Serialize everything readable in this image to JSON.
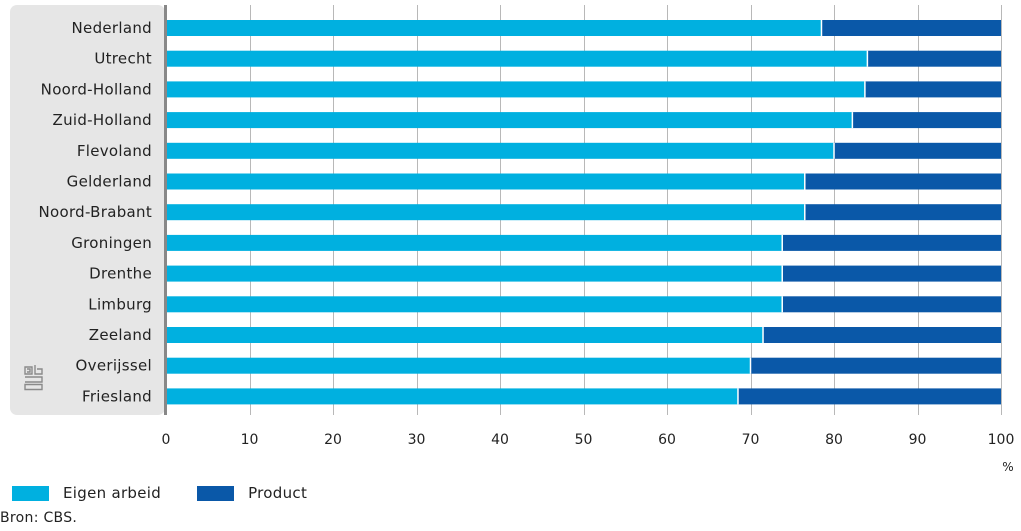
{
  "chart_data": {
    "type": "bar",
    "orientation": "horizontal",
    "stacked": true,
    "categories": [
      "Nederland",
      "Utrecht",
      "Noord-Holland",
      "Zuid-Holland",
      "Flevoland",
      "Gelderland",
      "Noord-Brabant",
      "Groningen",
      "Drenthe",
      "Limburg",
      "Zeeland",
      "Overijssel",
      "Friesland"
    ],
    "series": [
      {
        "name": "Eigen arbeid",
        "color": "#00b0e0",
        "values": [
          78.5,
          84,
          83.7,
          82.2,
          80,
          76.5,
          76.5,
          73.8,
          73.8,
          73.8,
          71.5,
          70,
          68.5
        ]
      },
      {
        "name": "Product",
        "color": "#0a58a8",
        "values": [
          21.5,
          16,
          16.3,
          17.8,
          20,
          23.5,
          23.5,
          26.2,
          26.2,
          26.2,
          28.5,
          30,
          31.5
        ]
      }
    ],
    "xlim": [
      0,
      100
    ],
    "xticks": [
      "0",
      "10",
      "20",
      "30",
      "40",
      "50",
      "60",
      "70",
      "80",
      "90",
      "100"
    ],
    "xunit": "%",
    "grid": true,
    "legend_position": "bottom-left"
  },
  "source": "Bron: CBS.",
  "logo": "cbs"
}
